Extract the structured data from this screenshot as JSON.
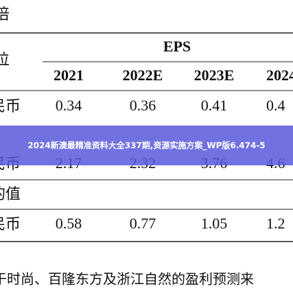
{
  "header": {
    "title": "倍"
  },
  "table": {
    "unit_label": "位",
    "group_header": "EPS",
    "columns": [
      "2021",
      "2022E",
      "2023E",
      "2024"
    ],
    "rows": [
      [
        "民币",
        "0.34",
        "0.36",
        "0.41",
        "0.4"
      ],
      [
        "民币",
        "2.17",
        "2.32",
        "3.76",
        "4.6"
      ]
    ],
    "section_label": "的值",
    "rows2": [
      [
        "民币",
        "0.58",
        "0.77",
        "1.05",
        "1.2"
      ]
    ]
  },
  "banner": {
    "text": "2024新澳最精准资料大全337期,资源实施方案_WP版6.474-5"
  },
  "footer": {
    "text": "于时尚、百隆东方及浙江自然的盈利预测来"
  }
}
